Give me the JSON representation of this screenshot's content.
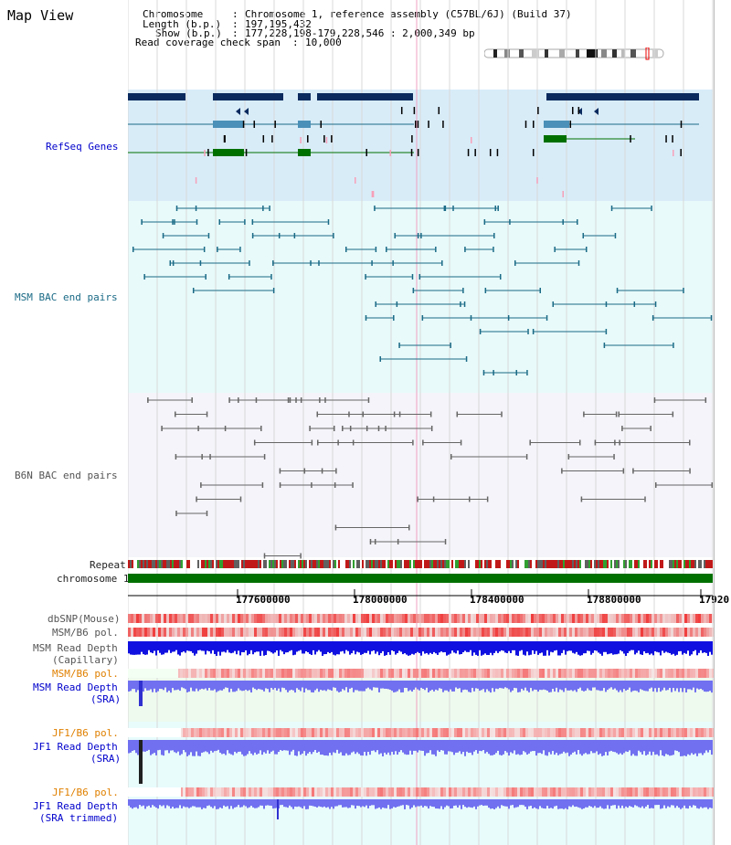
{
  "title": "Map View",
  "info": {
    "chromosome_key": "Chromosome",
    "chromosome_val": "Chromosome 1, reference assembly (C57BL/6J) (Build 37)",
    "length_key": "Length (b.p.)",
    "length_val": "197,195,432",
    "show_key": "Show (b.p.)",
    "show_val": "177,228,198-179,228,546 : 2,000,349 bp",
    "coverage_key": "Read coverage check span",
    "coverage_val": "10,000"
  },
  "tracks": {
    "refseq": "RefSeq Genes",
    "msm_bac": "MSM BAC end pairs",
    "b6n_bac": "B6N BAC end pairs",
    "repeat": "Repeat",
    "chromosome": "chromosome 1",
    "dbsnp": "dbSNP(Mouse)",
    "msm_b6_pol": "MSM/B6 pol.",
    "msm_depth_cap_1": "MSM Read Depth",
    "msm_depth_cap_2": "(Capillary)",
    "msm_b6_pol_2": "MSM/B6 pol.",
    "msm_depth_sra_1": "MSM Read Depth",
    "msm_depth_sra_2": "(SRA)",
    "jf1_b6_pol": "JF1/B6 pol.",
    "jf1_depth_sra_1": "JF1 Read Depth",
    "jf1_depth_sra_2": "(SRA)",
    "jf1_b6_pol_2": "JF1/B6 pol.",
    "jf1_depth_trim_1": "JF1 Read Depth",
    "jf1_depth_trim_2": "(SRA trimmed)"
  },
  "axis": {
    "ticks": [
      "177600000",
      "178000000",
      "178400000",
      "178800000",
      "17920"
    ]
  },
  "colors": {
    "refseq_bg": "#d8ecf8",
    "msm_bg": "#e8fafa",
    "b6n_bg": "#f4f4fa",
    "chromosome_bar": "#007000",
    "gene_dark": "#0a2a5e",
    "gene_mid": "#4a90b8",
    "gene_green": "#007000",
    "bac_teal": "#1a6a86",
    "bac_gray": "#666666",
    "depth_blue": "#1010e0",
    "depth_light": "#7070f0"
  }
}
